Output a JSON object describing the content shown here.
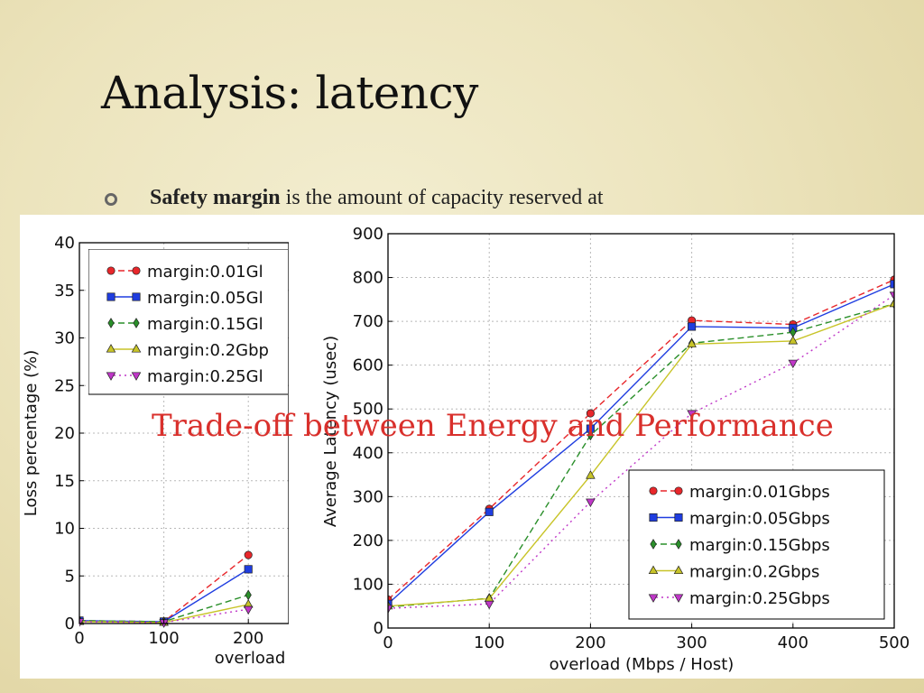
{
  "slide": {
    "title": "Analysis: latency",
    "bullet": {
      "bold": "Safety margin",
      "rest": "is the amount of capacity reserved at"
    },
    "overlay_caption": "Trade-off between Energy and Performance"
  },
  "colors": {
    "margin:0.01Gbps": "#e8272b",
    "margin:0.05Gbps": "#1f3de0",
    "margin:0.15Gbps": "#2a8f2a",
    "margin:0.2Gbps": "#c8c428",
    "margin:0.25Gbps": "#c037c8",
    "caption": "#d9302c"
  },
  "chart_data": [
    {
      "type": "line",
      "xlabel": "overload",
      "ylabel": "Loss percentage (%)",
      "xlim": [
        0,
        500
      ],
      "ylim": [
        0,
        40
      ],
      "x_ticks": [
        "0",
        "100",
        "200"
      ],
      "y_ticks": [
        "0",
        "5",
        "10",
        "15",
        "20",
        "25",
        "30",
        "35",
        "40"
      ],
      "grid": true,
      "legend_position": "top-left",
      "legend_labels": [
        "margin:0.01Gl",
        "margin:0.05Gl",
        "margin:0.15Gl",
        "margin:0.2Gbp",
        "margin:0.25Gl"
      ],
      "x": [
        0,
        100,
        200
      ],
      "series": [
        {
          "values": [
            0.3,
            0.2,
            7.2
          ]
        },
        {
          "values": [
            0.3,
            0.2,
            5.7
          ]
        },
        {
          "values": [
            0.3,
            0.2,
            3.0
          ]
        },
        {
          "values": [
            0.2,
            0.1,
            2.0
          ]
        },
        {
          "values": [
            0.2,
            0.1,
            1.5
          ]
        }
      ],
      "visible_x_range": [
        0,
        218
      ]
    },
    {
      "type": "line",
      "xlabel": "overload (Mbps / Host)",
      "ylabel": "Average Latency (usec)",
      "xlim": [
        0,
        500
      ],
      "ylim": [
        0,
        900
      ],
      "x_ticks": [
        "0",
        "100",
        "200",
        "300",
        "400",
        "500"
      ],
      "y_ticks": [
        "0",
        "100",
        "200",
        "300",
        "400",
        "500",
        "600",
        "700",
        "800",
        "900"
      ],
      "grid": true,
      "legend_position": "bottom-right",
      "x": [
        0,
        100,
        200,
        300,
        400,
        500
      ],
      "series": [
        {
          "name": "margin:0.01Gbps",
          "values": [
            65,
            272,
            490,
            702,
            693,
            795
          ]
        },
        {
          "name": "margin:0.05Gbps",
          "values": [
            55,
            265,
            455,
            688,
            685,
            785
          ]
        },
        {
          "name": "margin:0.15Gbps",
          "values": [
            48,
            68,
            440,
            650,
            675,
            740
          ]
        },
        {
          "name": "margin:0.2Gbps",
          "values": [
            50,
            67,
            348,
            648,
            655,
            740
          ]
        },
        {
          "name": "margin:0.25Gbps",
          "values": [
            45,
            55,
            288,
            490,
            605,
            760
          ]
        }
      ]
    }
  ]
}
